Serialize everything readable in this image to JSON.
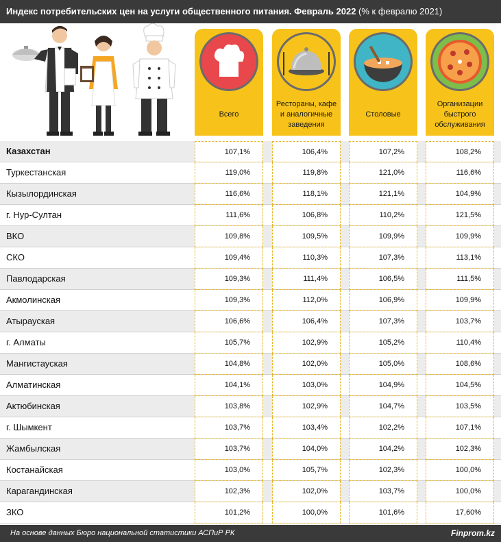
{
  "title": {
    "bold": "Индекс потребительских цен на услуги общественного питания. Февраль 2022",
    "normal": " (% к февралю 2021)"
  },
  "colors": {
    "header_bg": "#3a3a3a",
    "card": "#f7c31b",
    "circle_red": "#e8474b",
    "circle_yellow": "#f7c31b",
    "circle_teal": "#3fb5c5",
    "circle_green": "#7dbd4a",
    "dashed_border": "#e7b628",
    "row_shade": "#ececec"
  },
  "icons": [
    "chef-hat-icon",
    "cloche-icon",
    "soup-bowl-icon",
    "pizza-icon",
    "restaurant-staff-illustration"
  ],
  "columns": [
    {
      "label": "Всего"
    },
    {
      "label": "Рестораны, кафе и аналогичные заведения"
    },
    {
      "label": "Столовые"
    },
    {
      "label": "Организации быстрого обслуживания"
    }
  ],
  "chart_data": {
    "type": "table",
    "title": "Индекс потребительских цен на услуги общественного питания. Февраль 2022 (% к февралю 2021)",
    "columns": [
      "Всего",
      "Рестораны, кафе и аналогичные заведения",
      "Столовые",
      "Организации быстрого обслуживания"
    ],
    "rows": [
      {
        "region": "Казахстан",
        "values": [
          "107,1%",
          "106,4%",
          "107,2%",
          "108,2%"
        ]
      },
      {
        "region": "Туркестанская",
        "values": [
          "119,0%",
          "119,8%",
          "121,0%",
          "116,6%"
        ]
      },
      {
        "region": "Кызылординская",
        "values": [
          "116,6%",
          "118,1%",
          "121,1%",
          "104,9%"
        ]
      },
      {
        "region": "г. Нур-Султан",
        "values": [
          "111,6%",
          "106,8%",
          "110,2%",
          "121,5%"
        ]
      },
      {
        "region": "ВКО",
        "values": [
          "109,8%",
          "109,5%",
          "109,9%",
          "109,9%"
        ]
      },
      {
        "region": "СКО",
        "values": [
          "109,4%",
          "110,3%",
          "107,3%",
          "113,1%"
        ]
      },
      {
        "region": "Павлодарская",
        "values": [
          "109,3%",
          "111,4%",
          "106,5%",
          "111,5%"
        ]
      },
      {
        "region": "Акмолинская",
        "values": [
          "109,3%",
          "112,0%",
          "106,9%",
          "109,9%"
        ]
      },
      {
        "region": "Атырауская",
        "values": [
          "106,6%",
          "106,4%",
          "107,3%",
          "103,7%"
        ]
      },
      {
        "region": "г. Алматы",
        "values": [
          "105,7%",
          "102,9%",
          "105,2%",
          "110,4%"
        ]
      },
      {
        "region": "Мангистауская",
        "values": [
          "104,8%",
          "102,0%",
          "105,0%",
          "108,6%"
        ]
      },
      {
        "region": "Алматинская",
        "values": [
          "104,1%",
          "103,0%",
          "104,9%",
          "104,5%"
        ]
      },
      {
        "region": "Актюбинская",
        "values": [
          "103,8%",
          "102,9%",
          "104,7%",
          "103,5%"
        ]
      },
      {
        "region": "г. Шымкент",
        "values": [
          "103,7%",
          "103,4%",
          "102,2%",
          "107,1%"
        ]
      },
      {
        "region": "Жамбылская",
        "values": [
          "103,7%",
          "104,0%",
          "104,2%",
          "102,3%"
        ]
      },
      {
        "region": "Костанайская",
        "values": [
          "103,0%",
          "105,7%",
          "102,3%",
          "100,0%"
        ]
      },
      {
        "region": "Карагандинская",
        "values": [
          "102,3%",
          "102,0%",
          "103,7%",
          "100,0%"
        ]
      },
      {
        "region": "ЗКО",
        "values": [
          "101,2%",
          "100,0%",
          "101,6%",
          "17,60%"
        ]
      }
    ]
  },
  "footer": {
    "source": "На основе данных Бюро национальной статистики АСПиР РК",
    "brand": "Finprom.kz"
  }
}
